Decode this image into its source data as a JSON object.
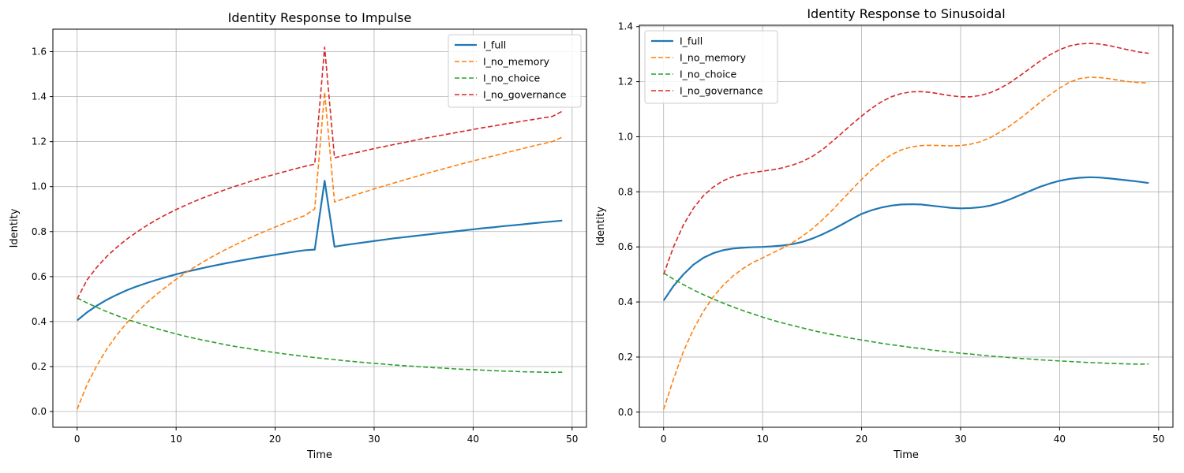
{
  "chart_data": [
    {
      "type": "line",
      "title": "Identity Response to Impulse",
      "xlabel": "Time",
      "ylabel": "Identity",
      "xlim": [
        -2.45,
        51.45
      ],
      "ylim": [
        -0.07,
        1.7
      ],
      "xticks": [
        0,
        10,
        20,
        30,
        40,
        50
      ],
      "yticks": [
        0.0,
        0.2,
        0.4,
        0.6,
        0.8,
        1.0,
        1.2,
        1.4,
        1.6
      ],
      "ytick_labels": [
        "0.0",
        "0.2",
        "0.4",
        "0.6",
        "0.8",
        "1.0",
        "1.2",
        "1.4",
        "1.6"
      ],
      "grid": true,
      "legend_position": "top-right",
      "x": [
        0,
        1,
        2,
        3,
        4,
        5,
        6,
        7,
        8,
        9,
        10,
        11,
        12,
        13,
        14,
        15,
        16,
        17,
        18,
        19,
        20,
        21,
        22,
        23,
        24,
        25,
        26,
        27,
        28,
        29,
        30,
        31,
        32,
        33,
        34,
        35,
        36,
        37,
        38,
        39,
        40,
        41,
        42,
        43,
        44,
        45,
        46,
        47,
        48,
        49
      ],
      "series": [
        {
          "name": "I_full",
          "color": "#1f77b4",
          "dash": "solid",
          "values": [
            0.405,
            0.441,
            0.471,
            0.497,
            0.519,
            0.539,
            0.556,
            0.571,
            0.585,
            0.598,
            0.61,
            0.621,
            0.631,
            0.641,
            0.65,
            0.659,
            0.667,
            0.675,
            0.683,
            0.69,
            0.697,
            0.704,
            0.711,
            0.717,
            0.72,
            1.026,
            0.733,
            0.74,
            0.746,
            0.752,
            0.758,
            0.764,
            0.77,
            0.775,
            0.78,
            0.785,
            0.79,
            0.795,
            0.8,
            0.805,
            0.81,
            0.815,
            0.819,
            0.824,
            0.828,
            0.832,
            0.837,
            0.841,
            0.845,
            0.849
          ]
        },
        {
          "name": "I_no_memory",
          "color": "#ff7f0e",
          "dash": "dashed",
          "values": [
            0.01,
            0.12,
            0.205,
            0.278,
            0.34,
            0.393,
            0.44,
            0.482,
            0.52,
            0.555,
            0.588,
            0.618,
            0.646,
            0.672,
            0.697,
            0.72,
            0.742,
            0.763,
            0.783,
            0.802,
            0.82,
            0.838,
            0.855,
            0.871,
            0.901,
            1.42,
            0.932,
            0.947,
            0.962,
            0.976,
            0.99,
            1.003,
            1.016,
            1.029,
            1.042,
            1.055,
            1.067,
            1.079,
            1.091,
            1.103,
            1.114,
            1.125,
            1.136,
            1.147,
            1.158,
            1.169,
            1.18,
            1.19,
            1.2,
            1.22
          ]
        },
        {
          "name": "I_no_choice",
          "color": "#2ca02c",
          "dash": "dashed",
          "values": [
            0.505,
            0.483,
            0.463,
            0.444,
            0.427,
            0.411,
            0.396,
            0.382,
            0.369,
            0.357,
            0.345,
            0.334,
            0.324,
            0.315,
            0.306,
            0.297,
            0.289,
            0.282,
            0.275,
            0.268,
            0.262,
            0.256,
            0.25,
            0.245,
            0.24,
            0.235,
            0.231,
            0.226,
            0.222,
            0.218,
            0.214,
            0.211,
            0.207,
            0.204,
            0.201,
            0.198,
            0.195,
            0.193,
            0.19,
            0.188,
            0.186,
            0.184,
            0.182,
            0.18,
            0.179,
            0.177,
            0.176,
            0.175,
            0.174,
            0.175
          ]
        },
        {
          "name": "I_no_governance",
          "color": "#d62728",
          "dash": "dashed",
          "values": [
            0.5,
            0.585,
            0.642,
            0.69,
            0.73,
            0.766,
            0.797,
            0.826,
            0.852,
            0.876,
            0.898,
            0.918,
            0.937,
            0.955,
            0.971,
            0.987,
            1.002,
            1.016,
            1.03,
            1.043,
            1.055,
            1.067,
            1.079,
            1.09,
            1.1,
            1.62,
            1.128,
            1.139,
            1.149,
            1.159,
            1.169,
            1.178,
            1.187,
            1.196,
            1.205,
            1.214,
            1.222,
            1.23,
            1.238,
            1.246,
            1.254,
            1.262,
            1.269,
            1.277,
            1.284,
            1.291,
            1.298,
            1.305,
            1.312,
            1.335
          ]
        }
      ]
    },
    {
      "type": "line",
      "title": "Identity Response to Sinusoidal",
      "xlabel": "Time",
      "ylabel": "Identity",
      "xlim": [
        -2.45,
        51.45
      ],
      "ylim": [
        -0.055,
        1.405
      ],
      "xticks": [
        0,
        10,
        20,
        30,
        40,
        50
      ],
      "yticks": [
        0.0,
        0.2,
        0.4,
        0.6,
        0.8,
        1.0,
        1.2,
        1.4
      ],
      "ytick_labels": [
        "0.0",
        "0.2",
        "0.4",
        "0.6",
        "0.8",
        "1.0",
        "1.2",
        "1.4"
      ],
      "grid": true,
      "legend_position": "top-left",
      "x": [
        0,
        1,
        2,
        3,
        4,
        5,
        6,
        7,
        8,
        9,
        10,
        11,
        12,
        13,
        14,
        15,
        16,
        17,
        18,
        19,
        20,
        21,
        22,
        23,
        24,
        25,
        26,
        27,
        28,
        29,
        30,
        31,
        32,
        33,
        34,
        35,
        36,
        37,
        38,
        39,
        40,
        41,
        42,
        43,
        44,
        45,
        46,
        47,
        48,
        49
      ],
      "series": [
        {
          "name": "I_full",
          "color": "#1f77b4",
          "dash": "solid",
          "values": [
            0.405,
            0.458,
            0.5,
            0.535,
            0.56,
            0.577,
            0.588,
            0.594,
            0.597,
            0.599,
            0.6,
            0.602,
            0.605,
            0.61,
            0.618,
            0.63,
            0.645,
            0.662,
            0.681,
            0.701,
            0.72,
            0.733,
            0.743,
            0.75,
            0.754,
            0.755,
            0.754,
            0.75,
            0.746,
            0.742,
            0.74,
            0.741,
            0.744,
            0.75,
            0.76,
            0.773,
            0.788,
            0.803,
            0.818,
            0.83,
            0.84,
            0.847,
            0.851,
            0.853,
            0.852,
            0.849,
            0.845,
            0.841,
            0.837,
            0.832
          ]
        },
        {
          "name": "I_no_memory",
          "color": "#ff7f0e",
          "dash": "dashed",
          "values": [
            0.01,
            0.12,
            0.22,
            0.3,
            0.365,
            0.418,
            0.46,
            0.494,
            0.521,
            0.543,
            0.56,
            0.578,
            0.595,
            0.615,
            0.638,
            0.665,
            0.697,
            0.732,
            0.77,
            0.808,
            0.845,
            0.88,
            0.91,
            0.935,
            0.952,
            0.963,
            0.968,
            0.969,
            0.968,
            0.967,
            0.968,
            0.973,
            0.982,
            0.997,
            1.017,
            1.04,
            1.066,
            1.095,
            1.124,
            1.152,
            1.177,
            1.198,
            1.211,
            1.216,
            1.215,
            1.211,
            1.205,
            1.2,
            1.197,
            1.195
          ]
        },
        {
          "name": "I_no_choice",
          "color": "#2ca02c",
          "dash": "dashed",
          "values": [
            0.505,
            0.483,
            0.463,
            0.444,
            0.427,
            0.411,
            0.396,
            0.382,
            0.369,
            0.357,
            0.345,
            0.334,
            0.324,
            0.315,
            0.306,
            0.297,
            0.289,
            0.282,
            0.275,
            0.268,
            0.262,
            0.256,
            0.25,
            0.245,
            0.24,
            0.235,
            0.231,
            0.226,
            0.222,
            0.218,
            0.214,
            0.211,
            0.207,
            0.204,
            0.201,
            0.198,
            0.195,
            0.193,
            0.19,
            0.188,
            0.186,
            0.184,
            0.182,
            0.18,
            0.179,
            0.177,
            0.176,
            0.175,
            0.174,
            0.175
          ]
        },
        {
          "name": "I_no_governance",
          "color": "#d62728",
          "dash": "dashed",
          "values": [
            0.5,
            0.6,
            0.68,
            0.74,
            0.785,
            0.817,
            0.84,
            0.855,
            0.864,
            0.87,
            0.875,
            0.88,
            0.887,
            0.897,
            0.91,
            0.928,
            0.952,
            0.982,
            1.013,
            1.045,
            1.075,
            1.103,
            1.127,
            1.145,
            1.157,
            1.163,
            1.164,
            1.161,
            1.155,
            1.149,
            1.145,
            1.145,
            1.15,
            1.16,
            1.176,
            1.197,
            1.222,
            1.248,
            1.274,
            1.297,
            1.316,
            1.33,
            1.337,
            1.339,
            1.337,
            1.331,
            1.323,
            1.315,
            1.308,
            1.303
          ]
        }
      ]
    }
  ]
}
